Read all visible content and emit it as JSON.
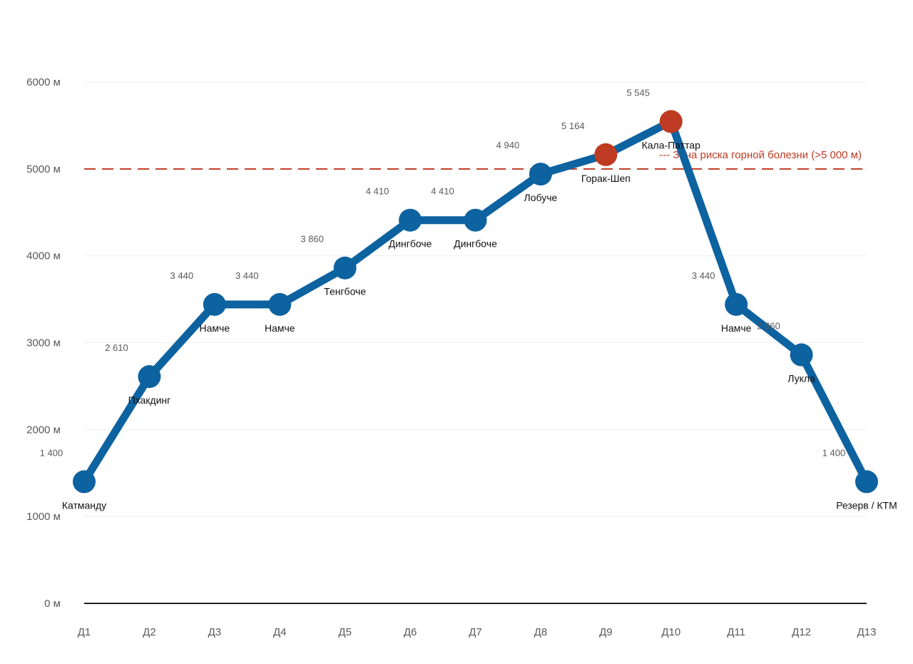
{
  "chart_data": {
    "type": "line",
    "title": "",
    "xlabel": "",
    "ylabel": "",
    "categories": [
      "Д1",
      "Д2",
      "Д3",
      "Д4",
      "Д5",
      "Д6",
      "Д7",
      "Д8",
      "Д9",
      "Д10",
      "Д11",
      "Д12",
      "Д13"
    ],
    "series": [
      {
        "values": [
          1400,
          2610,
          3440,
          3440,
          3860,
          4410,
          4410,
          4940,
          5164,
          5545,
          3440,
          2860,
          1400
        ],
        "value_labels": [
          "1 400",
          "2 610",
          "3 440",
          "3 440",
          "3 860",
          "4 410",
          "4 410",
          "4 940",
          "5 164",
          "5 545",
          "3 440",
          "2 860",
          "1 400"
        ],
        "point_labels": [
          "Катманду",
          "Пхакдинг",
          "Намче",
          "Намче",
          "Тенгбоче",
          "Дингбоче",
          "Дингбоче",
          "Лобуче",
          "Горак-Шеп",
          "Кала-Паттар",
          "Намче",
          "Лукла",
          "Резерв / КТМ"
        ],
        "color": "#0D62A0",
        "highlight_color": "#BE3A22",
        "highlight_indices": [
          8,
          9
        ]
      }
    ],
    "ylim": [
      0,
      6000
    ],
    "yticks": [
      0,
      1000,
      2000,
      3000,
      4000,
      5000,
      6000
    ],
    "ytick_labels": [
      "0 м",
      "1000 м",
      "2000 м",
      "3000 м",
      "4000 м",
      "5000 м",
      "6000 м"
    ],
    "grid": true,
    "legend": "none",
    "threshold": {
      "value": 5000,
      "label": "--- Зона риска горной болезни (>5 000 м)",
      "color": "#BE3A22"
    }
  }
}
